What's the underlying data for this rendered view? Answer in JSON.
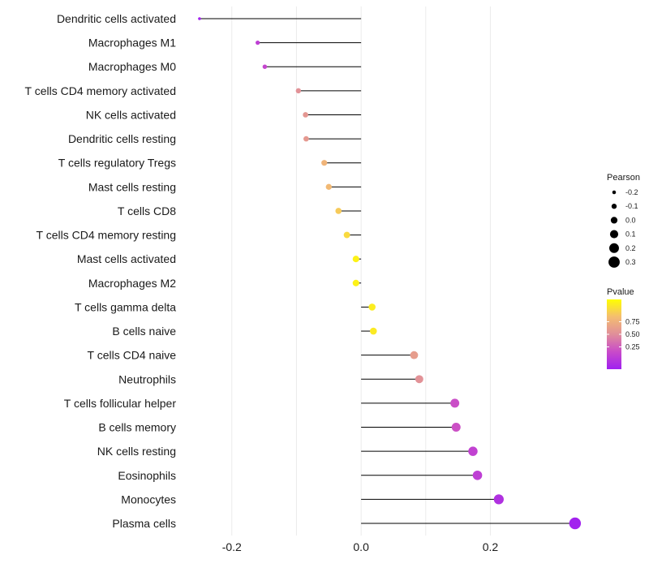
{
  "chart_data": {
    "type": "lollipop",
    "xlim": [
      -0.2675,
      0.345
    ],
    "x_ticks": [
      -0.2,
      0.0,
      0.2
    ],
    "x_tick_labels": [
      "-0.2",
      "0.0",
      "0.2"
    ],
    "minor_gridlines": [
      -0.1,
      0.1
    ],
    "categories": [
      "Dendritic cells activated",
      "Macrophages M1",
      "Macrophages M0",
      "T cells CD4 memory activated",
      "NK cells activated",
      "Dendritic cells resting",
      "T cells regulatory  Tregs ",
      "Mast cells resting",
      "T cells CD8",
      "T cells CD4 memory resting",
      "Mast cells activated",
      "Macrophages M2",
      "T cells gamma delta",
      "B cells naive",
      "T cells CD4 naive",
      "Neutrophils",
      "T cells follicular helper",
      "B cells memory",
      "NK cells resting",
      "Eosinophils",
      "Monocytes",
      "Plasma cells"
    ],
    "pearson": [
      -0.25,
      -0.16,
      -0.149,
      -0.097,
      -0.086,
      -0.085,
      -0.057,
      -0.05,
      -0.035,
      -0.022,
      -0.008,
      -0.008,
      0.017,
      0.019,
      0.082,
      0.09,
      0.145,
      0.147,
      0.173,
      0.18,
      0.213,
      0.331
    ],
    "pvalue": [
      0.01,
      0.18,
      0.22,
      0.52,
      0.55,
      0.56,
      0.7,
      0.73,
      0.8,
      0.86,
      0.95,
      0.95,
      0.93,
      0.92,
      0.58,
      0.52,
      0.26,
      0.27,
      0.2,
      0.18,
      0.1,
      0.01
    ],
    "legend_size": {
      "title": "Pearson",
      "labels": [
        "-0.2",
        "-0.1",
        "0.0",
        "0.1",
        "0.2",
        "0.3"
      ],
      "values": [
        -0.2,
        -0.1,
        0.0,
        0.1,
        0.2,
        0.3
      ]
    },
    "legend_color": {
      "title": "Pvalue",
      "labels": [
        "0.75",
        "0.50",
        "0.25"
      ],
      "values": [
        0.75,
        0.5,
        0.25
      ],
      "range": [
        0.0,
        1.0
      ],
      "low_color": "#a020f0",
      "high_color": "#ffff00"
    },
    "colors": {
      "segment": "#000000",
      "grid": "#ebebeb",
      "gradient_stops": [
        "#a020f0",
        "#c94bc9",
        "#e08e9a",
        "#f4bd71",
        "#ffff00"
      ]
    }
  }
}
